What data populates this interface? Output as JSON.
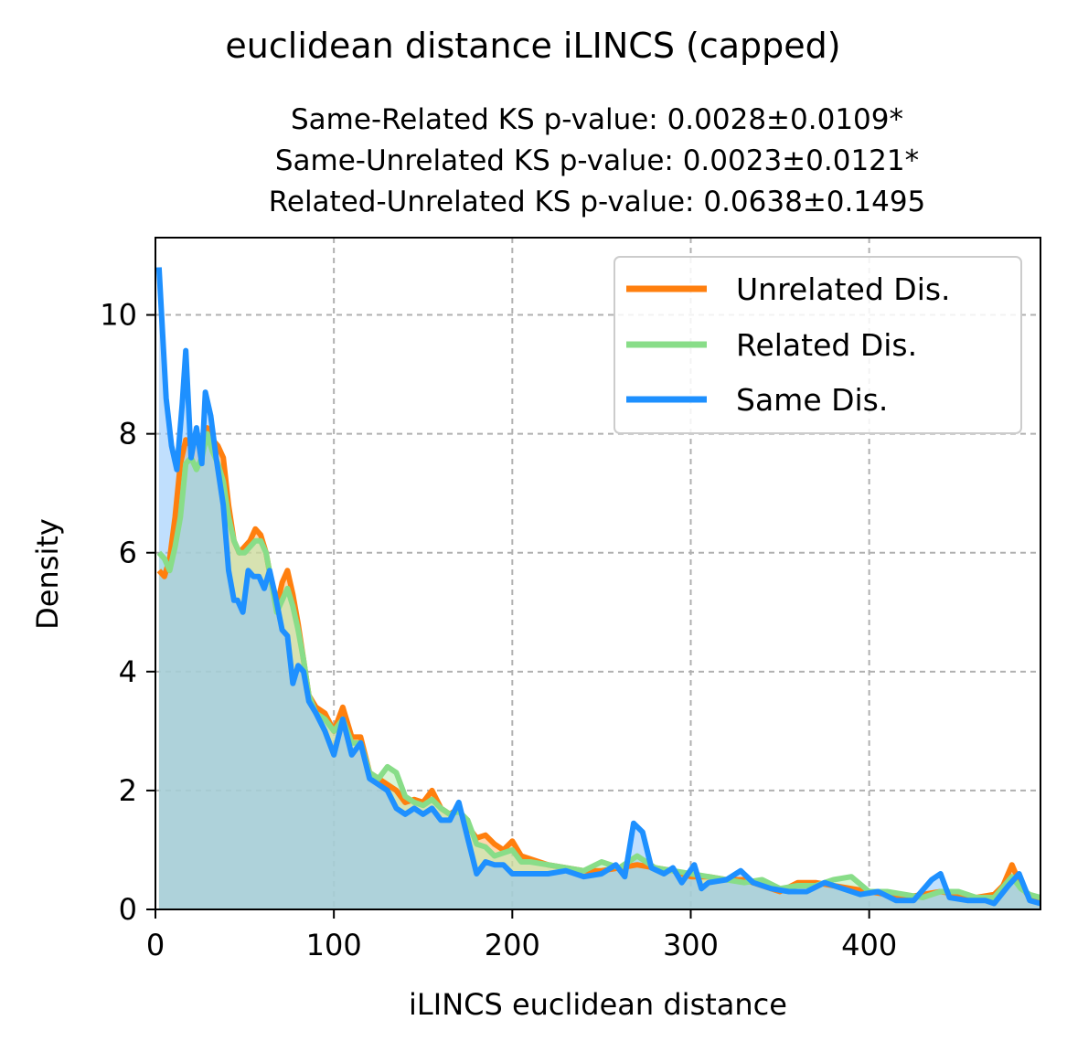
{
  "chart_data": {
    "type": "area",
    "title": "euclidean distance iLINCS (capped)",
    "subtitle_lines": [
      "Same-Related KS p-value: 0.0028±0.0109*",
      "Same-Unrelated KS p-value: 0.0023±0.0121*",
      "Related-Unrelated KS p-value: 0.0638±0.1495"
    ],
    "xlabel": "iLINCS euclidean distance",
    "ylabel": "Density",
    "xlim": [
      0,
      496
    ],
    "ylim": [
      0,
      11.3
    ],
    "xticks": [
      0,
      100,
      200,
      300,
      400
    ],
    "yticks": [
      0,
      2,
      4,
      6,
      8,
      10
    ],
    "grid": true,
    "legend_position": "top-right",
    "series": [
      {
        "name": "Unrelated Dis.",
        "color": "#ff7f0e",
        "fill_color": "#ffb56b",
        "points": [
          [
            2,
            5.7
          ],
          [
            5,
            5.6
          ],
          [
            8,
            5.9
          ],
          [
            11,
            6.6
          ],
          [
            14,
            7.5
          ],
          [
            17,
            7.9
          ],
          [
            20,
            7.8
          ],
          [
            23,
            8.0
          ],
          [
            26,
            7.8
          ],
          [
            29,
            8.1
          ],
          [
            32,
            7.9
          ],
          [
            35,
            7.8
          ],
          [
            38,
            7.6
          ],
          [
            41,
            6.8
          ],
          [
            44,
            6.2
          ],
          [
            47,
            6.0
          ],
          [
            50,
            6.1
          ],
          [
            53,
            6.2
          ],
          [
            56,
            6.4
          ],
          [
            59,
            6.3
          ],
          [
            62,
            6.0
          ],
          [
            65,
            5.5
          ],
          [
            68,
            5.1
          ],
          [
            71,
            5.5
          ],
          [
            74,
            5.7
          ],
          [
            77,
            5.3
          ],
          [
            80,
            4.8
          ],
          [
            83,
            4.2
          ],
          [
            86,
            3.6
          ],
          [
            90,
            3.4
          ],
          [
            95,
            3.3
          ],
          [
            100,
            3.0
          ],
          [
            105,
            3.4
          ],
          [
            110,
            2.9
          ],
          [
            115,
            2.9
          ],
          [
            120,
            2.3
          ],
          [
            125,
            2.2
          ],
          [
            130,
            2.1
          ],
          [
            135,
            2.0
          ],
          [
            140,
            1.8
          ],
          [
            145,
            1.85
          ],
          [
            150,
            1.8
          ],
          [
            155,
            2.0
          ],
          [
            160,
            1.7
          ],
          [
            165,
            1.6
          ],
          [
            170,
            1.7
          ],
          [
            175,
            1.4
          ],
          [
            180,
            1.2
          ],
          [
            185,
            1.25
          ],
          [
            190,
            1.1
          ],
          [
            195,
            1.0
          ],
          [
            200,
            1.15
          ],
          [
            205,
            0.9
          ],
          [
            210,
            0.85
          ],
          [
            220,
            0.75
          ],
          [
            230,
            0.7
          ],
          [
            240,
            0.65
          ],
          [
            250,
            0.65
          ],
          [
            260,
            0.7
          ],
          [
            270,
            0.75
          ],
          [
            280,
            0.7
          ],
          [
            290,
            0.65
          ],
          [
            300,
            0.55
          ],
          [
            310,
            0.55
          ],
          [
            320,
            0.5
          ],
          [
            330,
            0.5
          ],
          [
            340,
            0.4
          ],
          [
            350,
            0.3
          ],
          [
            360,
            0.45
          ],
          [
            370,
            0.45
          ],
          [
            380,
            0.4
          ],
          [
            390,
            0.35
          ],
          [
            400,
            0.3
          ],
          [
            410,
            0.25
          ],
          [
            420,
            0.2
          ],
          [
            430,
            0.25
          ],
          [
            440,
            0.3
          ],
          [
            450,
            0.25
          ],
          [
            460,
            0.2
          ],
          [
            470,
            0.25
          ],
          [
            475,
            0.4
          ],
          [
            480,
            0.75
          ],
          [
            485,
            0.4
          ],
          [
            490,
            0.2
          ],
          [
            496,
            0.15
          ]
        ]
      },
      {
        "name": "Related Dis.",
        "color": "#88dd88",
        "fill_color": "#b7ecb5",
        "points": [
          [
            2,
            6.0
          ],
          [
            5,
            5.9
          ],
          [
            8,
            5.7
          ],
          [
            11,
            6.1
          ],
          [
            14,
            6.6
          ],
          [
            17,
            7.5
          ],
          [
            20,
            7.6
          ],
          [
            23,
            7.4
          ],
          [
            26,
            7.6
          ],
          [
            29,
            8.0
          ],
          [
            32,
            7.7
          ],
          [
            35,
            7.5
          ],
          [
            38,
            7.2
          ],
          [
            41,
            6.6
          ],
          [
            44,
            6.2
          ],
          [
            47,
            6.0
          ],
          [
            50,
            6.0
          ],
          [
            53,
            6.1
          ],
          [
            56,
            6.2
          ],
          [
            59,
            6.2
          ],
          [
            62,
            6.0
          ],
          [
            65,
            5.5
          ],
          [
            68,
            5.0
          ],
          [
            71,
            5.2
          ],
          [
            74,
            5.4
          ],
          [
            77,
            5.1
          ],
          [
            80,
            4.7
          ],
          [
            83,
            4.2
          ],
          [
            86,
            3.6
          ],
          [
            90,
            3.3
          ],
          [
            95,
            3.2
          ],
          [
            100,
            3.0
          ],
          [
            105,
            3.2
          ],
          [
            110,
            2.8
          ],
          [
            115,
            2.8
          ],
          [
            120,
            2.3
          ],
          [
            125,
            2.2
          ],
          [
            130,
            2.4
          ],
          [
            135,
            2.3
          ],
          [
            140,
            1.9
          ],
          [
            145,
            1.8
          ],
          [
            150,
            1.75
          ],
          [
            155,
            1.85
          ],
          [
            160,
            1.7
          ],
          [
            165,
            1.6
          ],
          [
            170,
            1.65
          ],
          [
            175,
            1.5
          ],
          [
            180,
            1.1
          ],
          [
            185,
            1.05
          ],
          [
            190,
            0.9
          ],
          [
            195,
            0.95
          ],
          [
            200,
            1.0
          ],
          [
            205,
            0.8
          ],
          [
            210,
            0.8
          ],
          [
            220,
            0.75
          ],
          [
            230,
            0.7
          ],
          [
            240,
            0.65
          ],
          [
            250,
            0.8
          ],
          [
            260,
            0.7
          ],
          [
            270,
            0.9
          ],
          [
            280,
            0.7
          ],
          [
            290,
            0.65
          ],
          [
            300,
            0.6
          ],
          [
            310,
            0.55
          ],
          [
            320,
            0.5
          ],
          [
            330,
            0.45
          ],
          [
            340,
            0.5
          ],
          [
            350,
            0.35
          ],
          [
            360,
            0.4
          ],
          [
            370,
            0.4
          ],
          [
            380,
            0.5
          ],
          [
            390,
            0.55
          ],
          [
            400,
            0.3
          ],
          [
            410,
            0.3
          ],
          [
            420,
            0.25
          ],
          [
            430,
            0.2
          ],
          [
            440,
            0.3
          ],
          [
            450,
            0.3
          ],
          [
            460,
            0.2
          ],
          [
            470,
            0.2
          ],
          [
            480,
            0.55
          ],
          [
            485,
            0.35
          ],
          [
            490,
            0.25
          ],
          [
            496,
            0.2
          ]
        ]
      },
      {
        "name": "Same Dis.",
        "color": "#1e90ff",
        "fill_color": "#8cc4fb",
        "points": [
          [
            2,
            10.8
          ],
          [
            6,
            8.6
          ],
          [
            9,
            7.8
          ],
          [
            12,
            7.4
          ],
          [
            15,
            8.5
          ],
          [
            17,
            9.4
          ],
          [
            20,
            7.6
          ],
          [
            23,
            8.1
          ],
          [
            26,
            7.5
          ],
          [
            28,
            8.7
          ],
          [
            31,
            8.3
          ],
          [
            34,
            7.6
          ],
          [
            38,
            6.8
          ],
          [
            41,
            5.7
          ],
          [
            44,
            5.2
          ],
          [
            46,
            5.2
          ],
          [
            49,
            5.0
          ],
          [
            52,
            5.7
          ],
          [
            55,
            5.6
          ],
          [
            58,
            5.6
          ],
          [
            61,
            5.4
          ],
          [
            64,
            5.7
          ],
          [
            67,
            5.3
          ],
          [
            71,
            4.7
          ],
          [
            74,
            4.6
          ],
          [
            77,
            3.8
          ],
          [
            80,
            4.1
          ],
          [
            83,
            4.0
          ],
          [
            86,
            3.5
          ],
          [
            90,
            3.3
          ],
          [
            95,
            3.0
          ],
          [
            100,
            2.6
          ],
          [
            105,
            3.2
          ],
          [
            110,
            2.6
          ],
          [
            115,
            2.8
          ],
          [
            120,
            2.2
          ],
          [
            125,
            2.1
          ],
          [
            130,
            2.0
          ],
          [
            135,
            1.7
          ],
          [
            140,
            1.6
          ],
          [
            145,
            1.7
          ],
          [
            150,
            1.6
          ],
          [
            155,
            1.7
          ],
          [
            160,
            1.5
          ],
          [
            165,
            1.5
          ],
          [
            170,
            1.8
          ],
          [
            175,
            1.2
          ],
          [
            180,
            0.6
          ],
          [
            185,
            0.8
          ],
          [
            190,
            0.75
          ],
          [
            195,
            0.75
          ],
          [
            200,
            0.6
          ],
          [
            205,
            0.6
          ],
          [
            210,
            0.6
          ],
          [
            220,
            0.6
          ],
          [
            230,
            0.65
          ],
          [
            240,
            0.55
          ],
          [
            250,
            0.6
          ],
          [
            258,
            0.75
          ],
          [
            263,
            0.55
          ],
          [
            268,
            1.45
          ],
          [
            273,
            1.3
          ],
          [
            278,
            0.7
          ],
          [
            285,
            0.6
          ],
          [
            290,
            0.7
          ],
          [
            295,
            0.45
          ],
          [
            302,
            0.75
          ],
          [
            306,
            0.35
          ],
          [
            310,
            0.45
          ],
          [
            320,
            0.5
          ],
          [
            328,
            0.65
          ],
          [
            335,
            0.45
          ],
          [
            345,
            0.35
          ],
          [
            355,
            0.3
          ],
          [
            365,
            0.3
          ],
          [
            375,
            0.45
          ],
          [
            385,
            0.35
          ],
          [
            395,
            0.25
          ],
          [
            405,
            0.3
          ],
          [
            415,
            0.15
          ],
          [
            425,
            0.15
          ],
          [
            435,
            0.5
          ],
          [
            440,
            0.6
          ],
          [
            445,
            0.2
          ],
          [
            455,
            0.15
          ],
          [
            465,
            0.15
          ],
          [
            470,
            0.1
          ],
          [
            478,
            0.4
          ],
          [
            484,
            0.6
          ],
          [
            490,
            0.15
          ],
          [
            496,
            0.1
          ]
        ]
      }
    ]
  }
}
